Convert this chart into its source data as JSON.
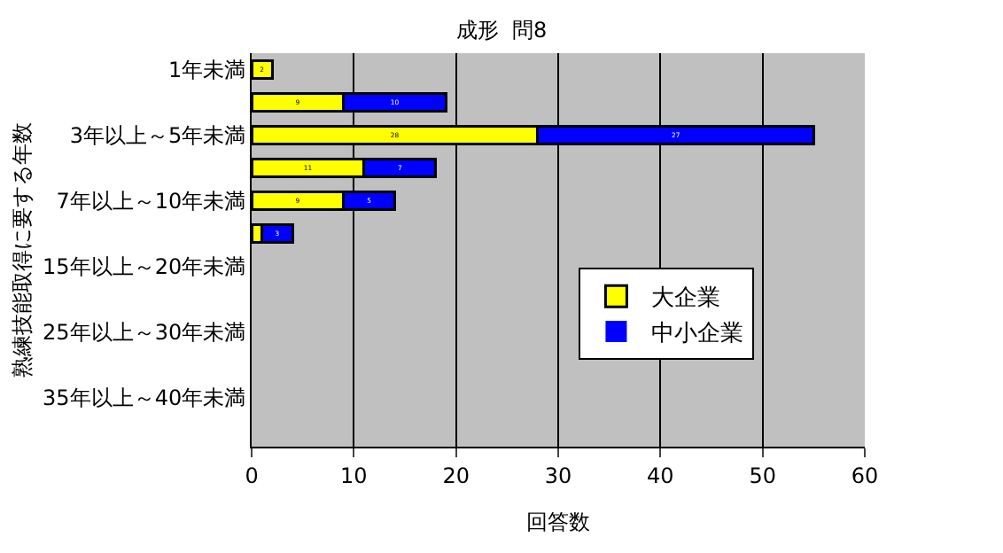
{
  "chart_data": {
    "type": "bar",
    "orientation": "horizontal",
    "stacked": true,
    "title": "成形  問8",
    "xlabel": "回答数",
    "ylabel": "熟練技能取得に要する年数",
    "categories": [
      "1年未満",
      null,
      "3年以上～5年未満",
      null,
      "7年以上～10年未満",
      null,
      "15年以上～20年未満",
      null,
      "25年以上～30年未満",
      null,
      "35年以上～40年未満",
      null
    ],
    "series": [
      {
        "name": "大企業",
        "color": "#ffff00",
        "values": [
          2,
          9,
          28,
          11,
          9,
          1,
          0,
          0,
          0,
          0,
          0,
          0
        ],
        "value_labels": [
          "2",
          "9",
          "28",
          "11",
          "9",
          null,
          null,
          null,
          null,
          null,
          null,
          null
        ]
      },
      {
        "name": "中小企業",
        "color": "#0000ff",
        "values": [
          0,
          10,
          27,
          7,
          5,
          3,
          0,
          0,
          0,
          0,
          0,
          0
        ],
        "value_labels": [
          null,
          "10",
          "27",
          "7",
          "5",
          "3",
          null,
          null,
          null,
          null,
          null,
          null
        ]
      }
    ],
    "xlim": [
      0,
      60
    ],
    "xticks": [
      0,
      10,
      20,
      30,
      40,
      50,
      60
    ],
    "grid": "x",
    "legend": "right"
  }
}
